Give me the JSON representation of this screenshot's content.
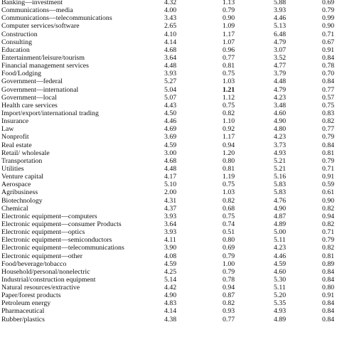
{
  "rows": [
    {
      "name": "Banking—investment",
      "v1": "4.32",
      "v2": "1.13",
      "v3": "5.88",
      "v4": "0.69"
    },
    {
      "name": "Communications—media",
      "v1": "4.00",
      "v2": "0.79",
      "v3": "3.93",
      "v4": "0.79"
    },
    {
      "name": "Communications—telecommunications",
      "v1": "3.43",
      "v2": "0.90",
      "v3": "4.46",
      "v4": "0.99"
    },
    {
      "name": "Computer services/software",
      "v1": "2.65",
      "v2": "1.09",
      "v3": "5.13",
      "v4": "0.90"
    },
    {
      "name": "Construction",
      "v1": "4.10",
      "v2": "1.17",
      "v3": "6.48",
      "v4": "0.71"
    },
    {
      "name": "Consulting",
      "v1": "4.14",
      "v2": "1.07",
      "v3": "4.79",
      "v4": "0.67"
    },
    {
      "name": "Education",
      "v1": "4.68",
      "v2": "0.96",
      "v3": "3.07",
      "v4": "0.91"
    },
    {
      "name": "Entertainment/leisure/tourism",
      "v1": "3.64",
      "v2": "0.77",
      "v3": "3.52",
      "v4": "0.84"
    },
    {
      "name": "Financial management services",
      "v1": "4.48",
      "v2": "0.81",
      "v3": "4.77",
      "v4": "0.78"
    },
    {
      "name": "Food/Lodging",
      "v1": "3.93",
      "v2": "0.75",
      "v3": "3.79",
      "v4": "0.70"
    },
    {
      "name": "Government—federal",
      "v1": "5.27",
      "v2": "1.03",
      "v3": "4.48",
      "v4": "0.84"
    },
    {
      "name": "Government—international",
      "v1": "5.04",
      "v2": "1.21",
      "v3": "4.79",
      "v4": "0.77",
      "v2_bold": true
    },
    {
      "name": "Government—local",
      "v1": "5.07",
      "v2": "1.12",
      "v3": "4.23",
      "v4": "0.57"
    },
    {
      "name": "Health care services",
      "v1": "4.43",
      "v2": "0.75",
      "v3": "3.48",
      "v4": "0.75"
    },
    {
      "name": "Import/export/international trading",
      "v1": "4.50",
      "v2": "0.82",
      "v3": "4.60",
      "v4": "0.83"
    },
    {
      "name": "Insurance",
      "v1": "4.46",
      "v2": "1.10",
      "v3": "4.90",
      "v4": "0.82"
    },
    {
      "name": "Law",
      "v1": "4.69",
      "v2": "0.92",
      "v3": "4.80",
      "v4": "0.77"
    },
    {
      "name": "Nonprofit",
      "v1": "3.69",
      "v2": "1.17",
      "v3": "4.23",
      "v4": "0.79"
    },
    {
      "name": "Real estate",
      "v1": "4.59",
      "v2": "0.94",
      "v3": "3.73",
      "v4": "0.84"
    },
    {
      "name": "Retail/ wholesale",
      "v1": "3.00",
      "v2": "1.20",
      "v3": "4.93",
      "v4": "0.81"
    },
    {
      "name": "Transportation",
      "v1": "4.68",
      "v2": "0.80",
      "v3": "5.21",
      "v4": "0.79"
    },
    {
      "name": "Utilities",
      "v1": "4.48",
      "v2": "0.81",
      "v3": "5.21",
      "v4": "0.71"
    },
    {
      "name": "Venture capital",
      "v1": "4.17",
      "v2": "1.19",
      "v3": "5.16",
      "v4": "0.91"
    },
    {
      "name": "Aerospace",
      "v1": "5.10",
      "v2": "0.75",
      "v3": "5.83",
      "v4": "0.59"
    },
    {
      "name": "Agribusiness",
      "v1": "2.00",
      "v2": "1.03",
      "v3": "5.83",
      "v4": "0.61"
    },
    {
      "name": "Biotechnology",
      "v1": "4.31",
      "v2": "0.82",
      "v3": "4.76",
      "v4": "0.90"
    },
    {
      "name": "Chemical",
      "v1": "4.37",
      "v2": "0.68",
      "v3": "4.90",
      "v4": "0.82"
    },
    {
      "name": "Electronic equipment—computers",
      "v1": "3.93",
      "v2": "0.75",
      "v3": "4.87",
      "v4": "0.94"
    },
    {
      "name": "Electronic equipment—consumer Products",
      "v1": "3.64",
      "v2": "0.74",
      "v3": "4.89",
      "v4": "0.82"
    },
    {
      "name": "Electronic equipment—optics",
      "v1": "3.93",
      "v2": "0.51",
      "v3": "5.00",
      "v4": "0.71"
    },
    {
      "name": "Electronic equipment—semiconductors",
      "v1": "4.11",
      "v2": "0.80",
      "v3": "5.11",
      "v4": "0.79"
    },
    {
      "name": "Electronic equipment—telecommunications",
      "v1": "3.90",
      "v2": "0.69",
      "v3": "4.23",
      "v4": "0.82"
    },
    {
      "name": "Electronic equipment—other",
      "v1": "4.08",
      "v2": "0.79",
      "v3": "4.46",
      "v4": "0.81"
    },
    {
      "name": "Food/beverage/tobacco",
      "v1": "4.59",
      "v2": "1.00",
      "v3": "4.59",
      "v4": "0.89"
    },
    {
      "name": "Household/personal/nonelectric",
      "v1": "4.25",
      "v2": "0.79",
      "v3": "4.60",
      "v4": "0.84"
    },
    {
      "name": "Industrial/construction equipment",
      "v1": "5.14",
      "v2": "0.78",
      "v3": "5.30",
      "v4": "0.84"
    },
    {
      "name": "Natural resources/extractive",
      "v1": "4.42",
      "v2": "0.94",
      "v3": "5.11",
      "v4": "0.80"
    },
    {
      "name": "Paper/forest products",
      "v1": "4.90",
      "v2": "0.87",
      "v3": "5.20",
      "v4": "0.91"
    },
    {
      "name": "Petroleum energy",
      "v1": "4.83",
      "v2": "0.82",
      "v3": "5.35",
      "v4": "0.84"
    },
    {
      "name": "Pharmaceutical",
      "v1": "4.14",
      "v2": "0.93",
      "v3": "4.93",
      "v4": "0.84"
    },
    {
      "name": "Rubber/plastics",
      "v1": "4.38",
      "v2": "0.77",
      "v3": "4.89",
      "v4": "0.84"
    }
  ]
}
